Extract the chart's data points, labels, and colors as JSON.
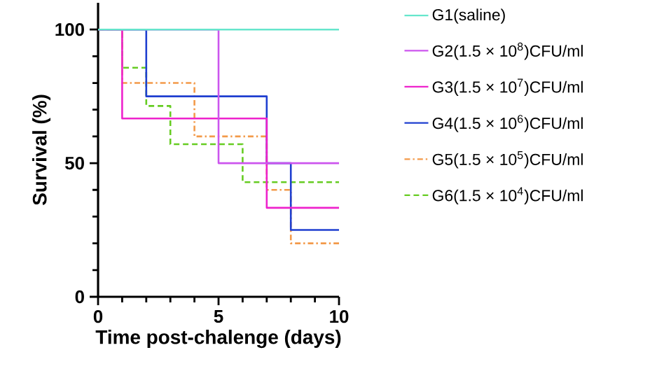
{
  "chart_data": {
    "type": "step",
    "xlabel": "Time post-chalenge (days)",
    "ylabel": "Survival (%)",
    "xlim": [
      0,
      10
    ],
    "ylim": [
      0,
      110
    ],
    "xticks": [
      0,
      5,
      10
    ],
    "yticks": [
      0,
      50,
      100
    ],
    "legend": "right",
    "grid": false,
    "series": [
      {
        "name": "G1(saline)",
        "color": "#66e6cc",
        "line_style": "solid",
        "x": [
          0,
          10
        ],
        "values": [
          100,
          100
        ]
      },
      {
        "name": "G2(1.5 × 10$^{8}$)CFU/ml",
        "color": "#cc55ee",
        "line_style": "solid",
        "x": [
          0,
          5,
          10
        ],
        "values": [
          100,
          50,
          50
        ]
      },
      {
        "name": "G3(1.5 × 10$^{7}$)CFU/ml",
        "color": "#ee22cc",
        "line_style": "solid",
        "x": [
          0,
          1,
          7,
          10
        ],
        "values": [
          100,
          66.7,
          33.3,
          33.3
        ]
      },
      {
        "name": "G4(1.5 × 10$^{6}$)CFU/ml",
        "color": "#1f3fd0",
        "line_style": "solid",
        "x": [
          0,
          2,
          7,
          8,
          10
        ],
        "values": [
          100,
          75,
          50,
          25,
          25
        ]
      },
      {
        "name": "G5(1.5 × 10$^{5}$)CFU/ml",
        "color": "#f39a4a",
        "line_style": "dashdot",
        "x": [
          0,
          1,
          4,
          7,
          8,
          10
        ],
        "values": [
          100,
          80,
          60,
          40,
          20,
          20
        ]
      },
      {
        "name": "G6(1.5 × 10$^{4}$)CFU/ml",
        "color": "#66cc22",
        "line_style": "dashed",
        "x": [
          0,
          1,
          2,
          3,
          6,
          10
        ],
        "values": [
          100,
          85.7,
          71.4,
          57.1,
          42.9,
          42.9
        ]
      }
    ]
  }
}
